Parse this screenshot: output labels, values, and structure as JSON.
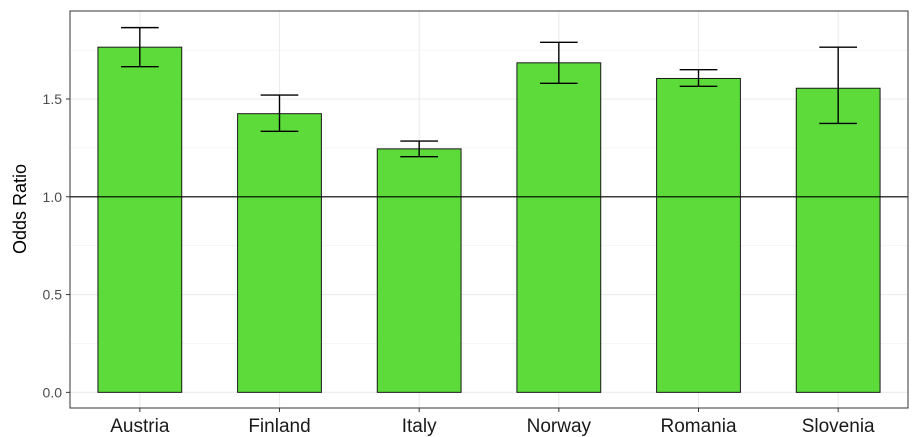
{
  "chart_data": {
    "type": "bar",
    "title": "",
    "xlabel": "",
    "ylabel": "Odds Ratio",
    "categories": [
      "Austria",
      "Finland",
      "Italy",
      "Norway",
      "Romania",
      "Slovenia"
    ],
    "values": [
      1.765,
      1.425,
      1.245,
      1.685,
      1.605,
      1.555
    ],
    "error_lower": [
      1.665,
      1.335,
      1.205,
      1.58,
      1.565,
      1.375
    ],
    "error_upper": [
      1.865,
      1.52,
      1.285,
      1.79,
      1.65,
      1.765
    ],
    "reference_line": 1.0,
    "yticks": [
      "0.0",
      "0.5",
      "1.0",
      "1.5"
    ],
    "ylim": [
      -0.08,
      1.95
    ],
    "grid": true,
    "legend": "none",
    "bar_color": "#5cdb3b",
    "bar_edge_color": "#1a1a1a"
  }
}
